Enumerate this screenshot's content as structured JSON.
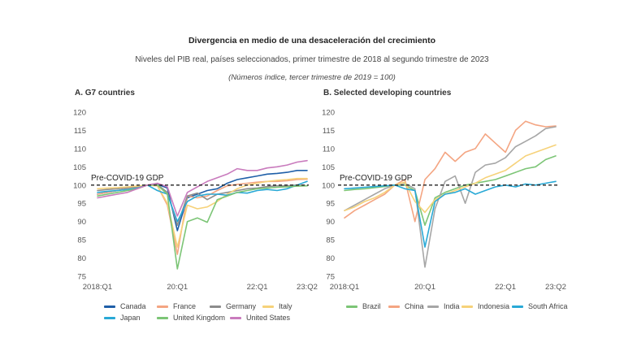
{
  "header": {
    "title": "Divergencia en medio de una desaceleración del crecimiento",
    "subtitle": "Niveles del PIB real, países seleccionados, primer trimestre de 2018 al segundo trimestre de 2023",
    "units": "(Números índice, tercer trimestre de 2019 = 100)"
  },
  "chart_data": [
    {
      "type": "line",
      "title": "A. G7 countries",
      "ylim": [
        75,
        120
      ],
      "yticks": [
        75,
        80,
        85,
        90,
        95,
        100,
        105,
        110,
        115,
        120
      ],
      "x": [
        0,
        1,
        2,
        3,
        4,
        5,
        6,
        7,
        8,
        9,
        10,
        11,
        12,
        13,
        14,
        15,
        16,
        17,
        18,
        19,
        20,
        21
      ],
      "xticks": [
        {
          "i": 0,
          "label": "2018:Q1"
        },
        {
          "i": 8,
          "label": "20:Q1"
        },
        {
          "i": 16,
          "label": "22:Q1"
        },
        {
          "i": 21,
          "label": "23:Q2"
        }
      ],
      "reference_line": {
        "value": 100,
        "label": "Pre-COVID-19 GDP"
      },
      "series": [
        {
          "name": "Canada",
          "color": "#1f5fa8",
          "values": [
            97.5,
            98.0,
            98.5,
            99.0,
            99.5,
            100.0,
            100.2,
            99.2,
            87.5,
            96.5,
            97.5,
            98.5,
            99.0,
            100.5,
            101.5,
            102.0,
            102.5,
            103.0,
            103.2,
            103.5,
            104.0,
            104.0
          ]
        },
        {
          "name": "France",
          "color": "#f4a582",
          "values": [
            97.5,
            98.0,
            98.5,
            99.0,
            99.5,
            100.0,
            99.8,
            94.5,
            81.0,
            97.0,
            96.5,
            97.0,
            98.5,
            99.8,
            100.2,
            100.5,
            100.8,
            101.0,
            101.0,
            101.2,
            101.5,
            101.6
          ]
        },
        {
          "name": "Germany",
          "color": "#8c8c8c",
          "values": [
            98.5,
            98.8,
            99.0,
            99.3,
            99.6,
            100.0,
            100.1,
            98.0,
            89.0,
            97.0,
            97.8,
            96.0,
            97.5,
            98.0,
            98.5,
            99.0,
            99.2,
            99.6,
            99.8,
            99.8,
            100.0,
            99.8
          ]
        },
        {
          "name": "Italy",
          "color": "#f6d27a",
          "values": [
            99.0,
            99.2,
            99.3,
            99.5,
            99.7,
            100.0,
            99.8,
            95.0,
            83.0,
            94.5,
            93.5,
            94.0,
            95.5,
            97.5,
            99.0,
            100.0,
            100.5,
            101.0,
            101.3,
            101.5,
            101.8,
            101.8
          ]
        },
        {
          "name": "Japan",
          "color": "#29a9d6",
          "values": [
            98.0,
            98.3,
            98.5,
            98.8,
            99.2,
            100.0,
            98.5,
            97.5,
            90.0,
            95.5,
            97.0,
            97.5,
            97.5,
            97.2,
            98.0,
            97.8,
            98.5,
            98.8,
            98.5,
            99.0,
            100.0,
            101.0
          ]
        },
        {
          "name": "United Kingdom",
          "color": "#7cc576",
          "values": [
            97.0,
            97.5,
            98.0,
            98.5,
            99.0,
            100.0,
            100.0,
            97.5,
            77.0,
            90.0,
            91.0,
            89.8,
            96.0,
            97.0,
            98.0,
            98.5,
            99.0,
            99.2,
            99.4,
            99.5,
            99.7,
            99.8
          ]
        },
        {
          "name": "United States",
          "color": "#c97bbd",
          "values": [
            96.5,
            97.0,
            97.5,
            98.0,
            99.0,
            100.0,
            100.5,
            99.5,
            91.5,
            98.0,
            99.5,
            101.0,
            102.0,
            103.0,
            104.5,
            104.0,
            104.0,
            104.7,
            105.0,
            105.5,
            106.3,
            106.7
          ]
        }
      ]
    },
    {
      "type": "line",
      "title": "B. Selected developing countries",
      "ylim": [
        75,
        120
      ],
      "yticks": [
        75,
        80,
        85,
        90,
        95,
        100,
        105,
        110,
        115,
        120
      ],
      "x": [
        0,
        1,
        2,
        3,
        4,
        5,
        6,
        7,
        8,
        9,
        10,
        11,
        12,
        13,
        14,
        15,
        16,
        17,
        18,
        19,
        20,
        21
      ],
      "xticks": [
        {
          "i": 0,
          "label": "2018:Q1"
        },
        {
          "i": 8,
          "label": "20:Q1"
        },
        {
          "i": 16,
          "label": "22:Q1"
        },
        {
          "i": 21,
          "label": "23:Q2"
        }
      ],
      "reference_line": {
        "value": 100,
        "label": "Pre-COVID-19 GDP"
      },
      "series": [
        {
          "name": "Brazil",
          "color": "#7cc576",
          "values": [
            98.5,
            98.8,
            99.0,
            99.3,
            99.6,
            100.0,
            100.0,
            98.5,
            89.0,
            96.5,
            98.0,
            99.0,
            100.0,
            100.5,
            101.0,
            101.5,
            102.5,
            103.5,
            104.5,
            105.0,
            107.0,
            108.0
          ]
        },
        {
          "name": "China",
          "color": "#f4a582",
          "values": [
            91.0,
            93.0,
            94.5,
            96.0,
            97.5,
            100.0,
            101.5,
            90.0,
            101.5,
            104.5,
            109.0,
            106.5,
            109.0,
            110.0,
            114.0,
            111.5,
            109.0,
            115.0,
            117.5,
            116.5,
            116.0,
            116.2
          ]
        },
        {
          "name": "India",
          "color": "#a6a6a6",
          "values": [
            93.0,
            94.5,
            96.0,
            97.5,
            99.0,
            100.0,
            100.5,
            99.0,
            77.5,
            93.5,
            101.0,
            102.5,
            95.0,
            103.5,
            105.5,
            106.0,
            107.5,
            110.5,
            112.0,
            113.5,
            115.5,
            116.0
          ]
        },
        {
          "name": "Indonesia",
          "color": "#f6d27a",
          "values": [
            93.0,
            94.0,
            95.5,
            96.5,
            98.0,
            100.0,
            100.8,
            95.5,
            92.5,
            96.0,
            97.5,
            98.5,
            99.5,
            100.5,
            102.0,
            103.0,
            104.0,
            106.0,
            108.0,
            109.0,
            110.0,
            111.0
          ]
        },
        {
          "name": "South Africa",
          "color": "#29a9d6",
          "values": [
            99.0,
            99.2,
            99.4,
            99.6,
            99.8,
            100.0,
            99.0,
            98.5,
            83.0,
            95.5,
            97.5,
            98.0,
            99.0,
            97.5,
            98.5,
            99.5,
            100.0,
            99.5,
            100.3,
            100.0,
            100.5,
            101.0
          ]
        }
      ]
    }
  ]
}
